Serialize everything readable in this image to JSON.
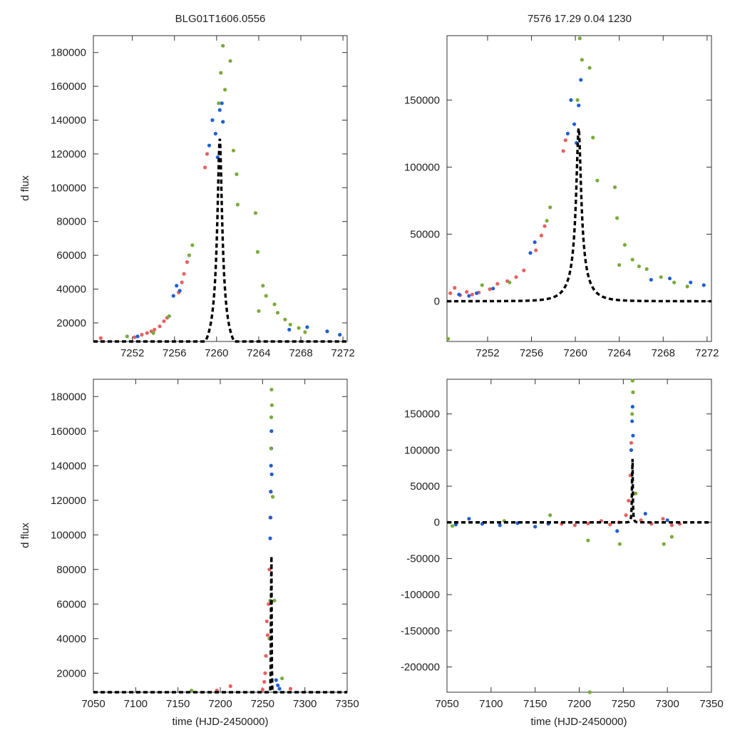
{
  "figure": {
    "title_left": "BLG01T1606.0556",
    "title_right": "7576  17.29  0.04  1230"
  },
  "colors": {
    "series_red": "#e8605f",
    "series_blue": "#1f5fd6",
    "series_green": "#7aab3a",
    "model": "#000000",
    "frame": "#333333"
  },
  "chart_data": [
    {
      "id": "zoom-left",
      "type": "scatter",
      "title": "BLG01T1606.0556",
      "xlabel": "",
      "ylabel": "d flux",
      "xlim": [
        7248.3,
        7272.4
      ],
      "ylim": [
        9000,
        190000
      ],
      "xticks": [
        7252,
        7256,
        7260,
        7264,
        7268,
        7272
      ],
      "yticks": [
        20000,
        40000,
        60000,
        80000,
        100000,
        120000,
        140000,
        160000,
        180000
      ],
      "grid": false,
      "model_label": "model fit",
      "series": [
        {
          "name": "red",
          "x": [
            7249.0,
            7252.2,
            7252.9,
            7253.4,
            7253.8,
            7254.1,
            7254.6,
            7255.0,
            7255.3,
            7256.4,
            7256.7,
            7256.9,
            7257.2,
            7258.9,
            7259.1
          ],
          "y": [
            11000,
            11500,
            13000,
            14000,
            15000,
            16000,
            18000,
            21000,
            23000,
            38000,
            44000,
            49000,
            56000,
            112000,
            120000
          ]
        },
        {
          "name": "blue",
          "x": [
            7252.5,
            7255.9,
            7256.2,
            7256.5,
            7259.3,
            7259.6,
            7259.9,
            7260.1,
            7260.3,
            7260.5,
            7260.6,
            7266.9,
            7268.6,
            7270.5,
            7271.7
          ],
          "y": [
            12000,
            36000,
            42000,
            39000,
            125000,
            140000,
            132000,
            118000,
            146000,
            150000,
            139000,
            16000,
            17500,
            15000,
            13000
          ]
        },
        {
          "name": "green",
          "x": [
            7251.5,
            7254.0,
            7255.5,
            7257.4,
            7257.7,
            7260.2,
            7260.4,
            7260.6,
            7260.8,
            7261.3,
            7261.6,
            7261.9,
            7262.0,
            7263.7,
            7263.9,
            7264.0,
            7264.4,
            7264.7,
            7265.5,
            7265.8,
            7266.5,
            7267.0,
            7267.8,
            7268.4
          ],
          "y": [
            12000,
            14000,
            24000,
            60000,
            66000,
            150000,
            168000,
            184000,
            158000,
            175000,
            122000,
            108000,
            90000,
            85000,
            62000,
            27000,
            42000,
            36000,
            31000,
            26000,
            22000,
            19000,
            17000,
            14500
          ]
        }
      ]
    },
    {
      "id": "zoom-right",
      "type": "scatter",
      "title": "7576  17.29  0.04  1230",
      "xlabel": "",
      "ylabel": "",
      "xlim": [
        7248.3,
        7272.4
      ],
      "ylim": [
        -30000,
        198000
      ],
      "xticks": [
        7252,
        7256,
        7260,
        7264,
        7268,
        7272
      ],
      "yticks": [
        0,
        50000,
        100000,
        150000
      ],
      "grid": false,
      "model_label": "model fit",
      "series": [
        {
          "name": "red",
          "x": [
            7248.6,
            7249.0,
            7249.5,
            7250.1,
            7250.6,
            7251.2,
            7252.2,
            7252.9,
            7253.8,
            7254.6,
            7255.3,
            7256.4,
            7256.9,
            7257.2,
            7258.9,
            7259.1
          ],
          "y": [
            6000,
            10000,
            4500,
            7000,
            5000,
            6500,
            9000,
            13000,
            15000,
            18000,
            23000,
            38000,
            49000,
            56000,
            112000,
            120000
          ]
        },
        {
          "name": "blue",
          "x": [
            7249.4,
            7250.3,
            7251.0,
            7252.5,
            7255.9,
            7256.3,
            7259.3,
            7259.6,
            7259.9,
            7260.1,
            7260.3,
            7260.5,
            7266.9,
            7268.6,
            7270.5,
            7271.7
          ],
          "y": [
            5000,
            4000,
            6000,
            9500,
            36000,
            44000,
            125000,
            150000,
            132000,
            118000,
            146000,
            165000,
            16000,
            17000,
            14000,
            12000
          ]
        },
        {
          "name": "green",
          "x": [
            7248.4,
            7251.5,
            7254.0,
            7257.4,
            7257.7,
            7260.2,
            7260.4,
            7260.6,
            7261.3,
            7261.6,
            7262.0,
            7263.6,
            7263.8,
            7264.0,
            7264.5,
            7265.2,
            7265.8,
            7266.5,
            7267.8,
            7269.0,
            7270.2
          ],
          "y": [
            -28000,
            12000,
            14000,
            60000,
            70000,
            150000,
            196000,
            180000,
            174000,
            122000,
            90000,
            85000,
            62000,
            27000,
            42000,
            31000,
            26000,
            24000,
            18000,
            14000,
            11000
          ]
        }
      ]
    },
    {
      "id": "full-left",
      "type": "scatter",
      "title": "",
      "xlabel": "time (HJD-2450000)",
      "ylabel": "d flux",
      "xlim": [
        7050,
        7350
      ],
      "ylim": [
        9000,
        190000
      ],
      "xticks": [
        7050,
        7100,
        7150,
        7200,
        7250,
        7300,
        7350
      ],
      "yticks": [
        20000,
        40000,
        60000,
        80000,
        100000,
        120000,
        140000,
        160000,
        180000
      ],
      "grid": false,
      "model_label": "model fit",
      "series": [
        {
          "name": "red",
          "x": [
            7196,
            7212,
            7250,
            7252,
            7253,
            7254,
            7255,
            7256,
            7257,
            7258,
            7259,
            7259.5,
            7283
          ],
          "y": [
            10000,
            12500,
            10500,
            15000,
            20000,
            30000,
            50000,
            42000,
            60000,
            80000,
            110000,
            125000,
            11000
          ]
        },
        {
          "name": "blue",
          "x": [
            7259,
            7259.5,
            7259.8,
            7260,
            7260.3,
            7260.5,
            7260.8,
            7266,
            7268,
            7270
          ],
          "y": [
            98000,
            110000,
            125000,
            140000,
            150000,
            160000,
            135000,
            16000,
            13000,
            11000
          ]
        },
        {
          "name": "green",
          "x": [
            7166,
            7258,
            7259,
            7260,
            7260.3,
            7260.6,
            7261,
            7262,
            7264,
            7273
          ],
          "y": [
            10000,
            40000,
            62000,
            150000,
            168000,
            184000,
            175000,
            122000,
            62000,
            17000
          ]
        }
      ]
    },
    {
      "id": "full-right",
      "type": "scatter",
      "title": "",
      "xlabel": "time (HJD-2450000)",
      "ylabel": "",
      "xlim": [
        7050,
        7350
      ],
      "ylim": [
        -235000,
        198000
      ],
      "xticks": [
        7050,
        7100,
        7150,
        7200,
        7250,
        7300,
        7350
      ],
      "yticks": [
        -200000,
        -150000,
        -100000,
        -50000,
        0,
        50000,
        100000,
        150000
      ],
      "grid": false,
      "model_label": "model fit",
      "series": [
        {
          "name": "red",
          "x": [
            7180,
            7195,
            7210,
            7225,
            7235,
            7245,
            7253,
            7256,
            7258,
            7259,
            7270,
            7282,
            7295,
            7305,
            7314
          ],
          "y": [
            -2000,
            -4000,
            -1500,
            2000,
            -3000,
            0,
            10000,
            30000,
            65000,
            110000,
            3000,
            -2000,
            5000,
            -4000,
            -2000
          ]
        },
        {
          "name": "blue",
          "x": [
            7060,
            7075,
            7090,
            7110,
            7130,
            7150,
            7165,
            7243,
            7259,
            7260,
            7260.5,
            7261,
            7275,
            7300
          ],
          "y": [
            -3000,
            5000,
            -2000,
            -4000,
            -1000,
            -6000,
            -2000,
            -12000,
            100000,
            140000,
            160000,
            120000,
            12000,
            3000
          ]
        },
        {
          "name": "green",
          "x": [
            7056,
            7115,
            7167,
            7210,
            7212,
            7246,
            7260,
            7260.5,
            7261,
            7264,
            7296,
            7305
          ],
          "y": [
            -5000,
            2000,
            10000,
            -25000,
            -235000,
            -30000,
            150000,
            196000,
            180000,
            40000,
            -30000,
            -20000
          ]
        }
      ]
    }
  ]
}
